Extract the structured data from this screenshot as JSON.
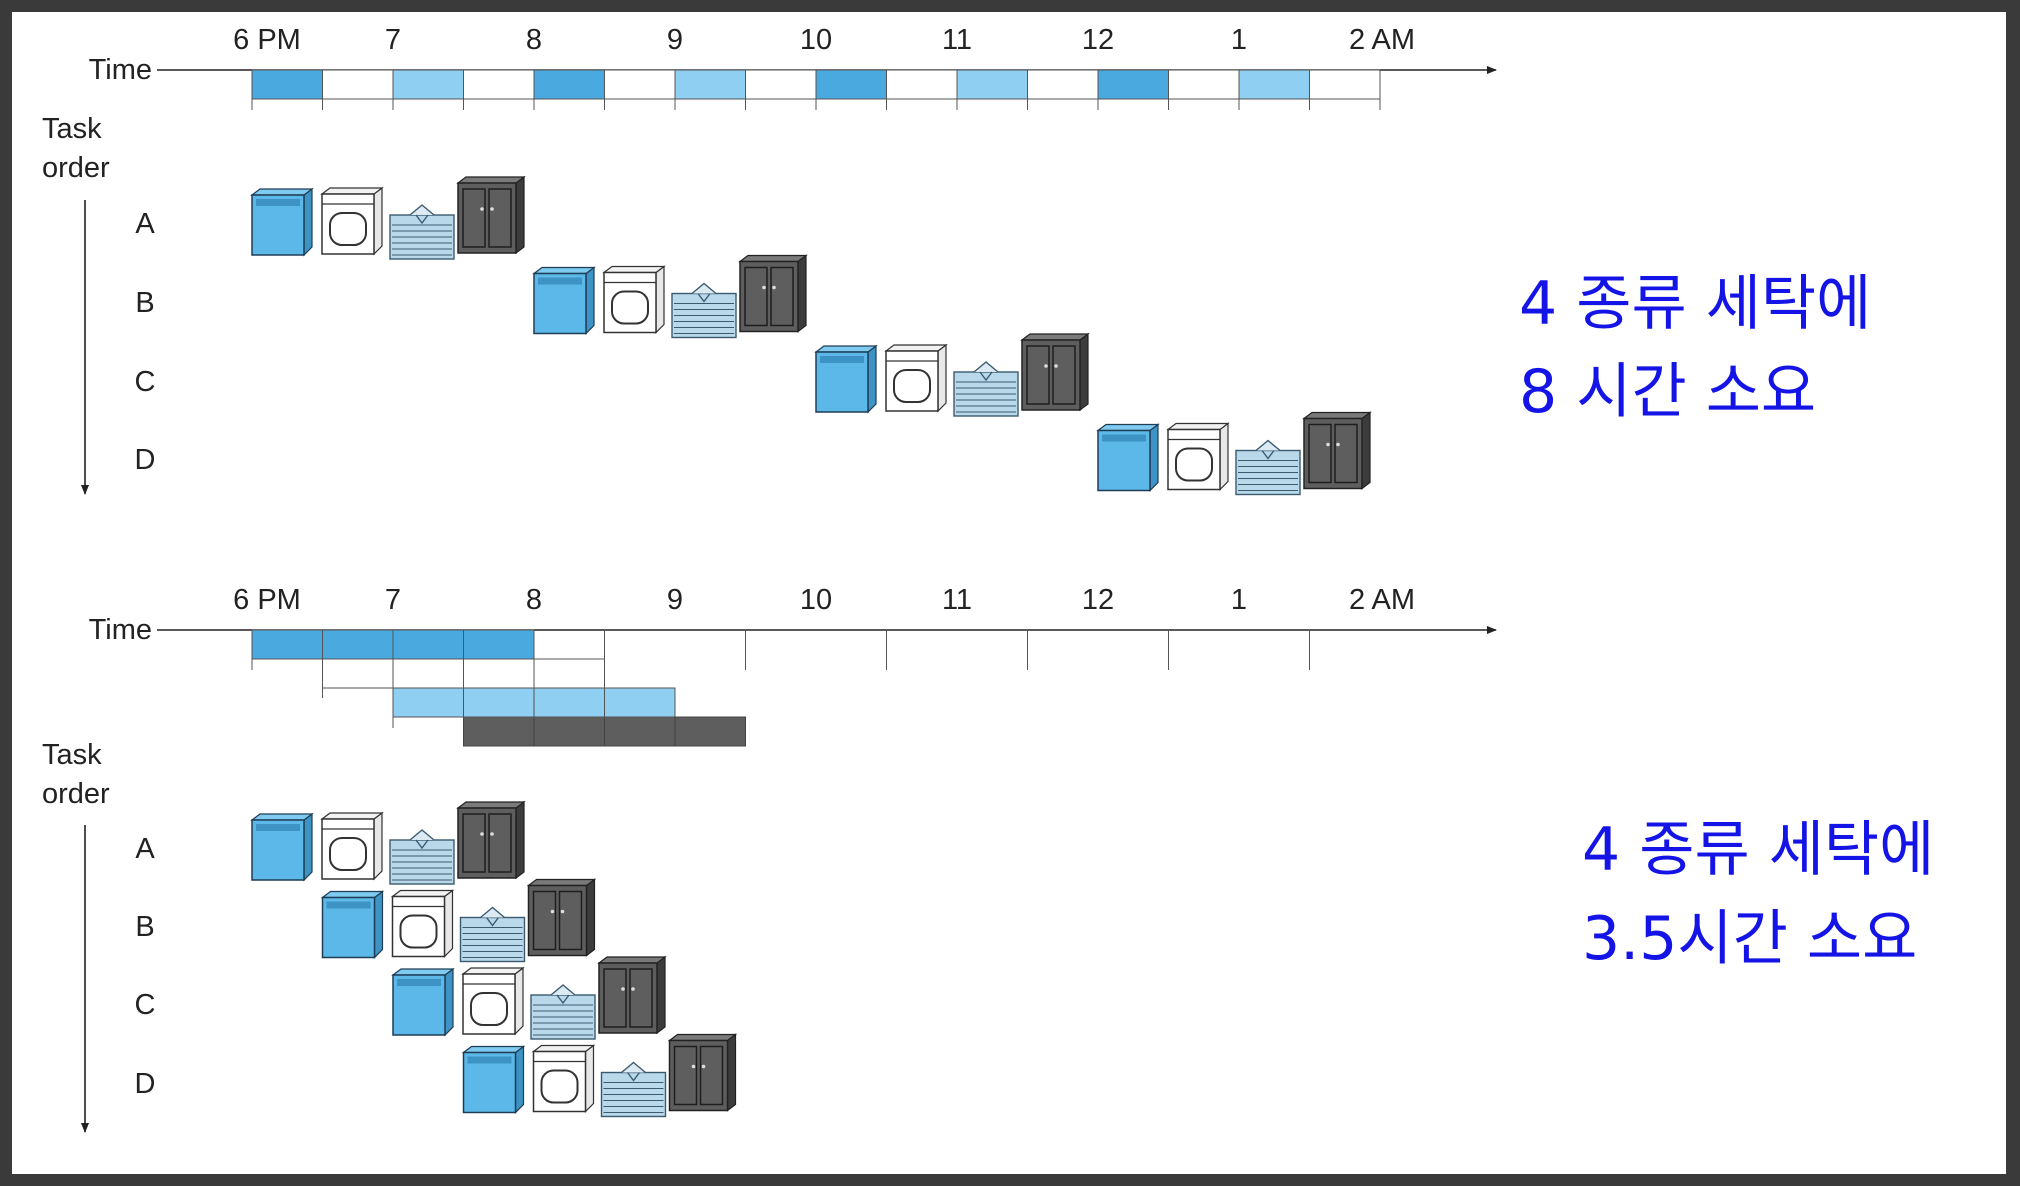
{
  "colors": {
    "wash": "#5bb8e8",
    "wash_dark": "#3c93c4",
    "dry": "#ffffff",
    "fold": "#b9d8ea",
    "store": "#5e5e5e",
    "bar_dark": "#4aa9de",
    "bar_light": "#8fd0f2",
    "note": "#1414e6"
  },
  "time_labels": [
    "6 PM",
    "7",
    "8",
    "9",
    "10",
    "11",
    "12",
    "1",
    "2 AM"
  ],
  "tasks": [
    "A",
    "B",
    "C",
    "D"
  ],
  "stage_icons": [
    "washer-icon",
    "dryer-icon",
    "folded-clothes-icon",
    "closet-icon"
  ],
  "sequential": {
    "axis_label": "Time",
    "task_label_1": "Task",
    "task_label_2": "order",
    "note_line1": "4 종류 세탁에",
    "note_line2": "8 시간 소요"
  },
  "pipelined": {
    "axis_label": "Time",
    "task_label_1": "Task",
    "task_label_2": "order",
    "note_line1": "4 종류 세탁에",
    "note_line2": "3.5시간 소요"
  }
}
